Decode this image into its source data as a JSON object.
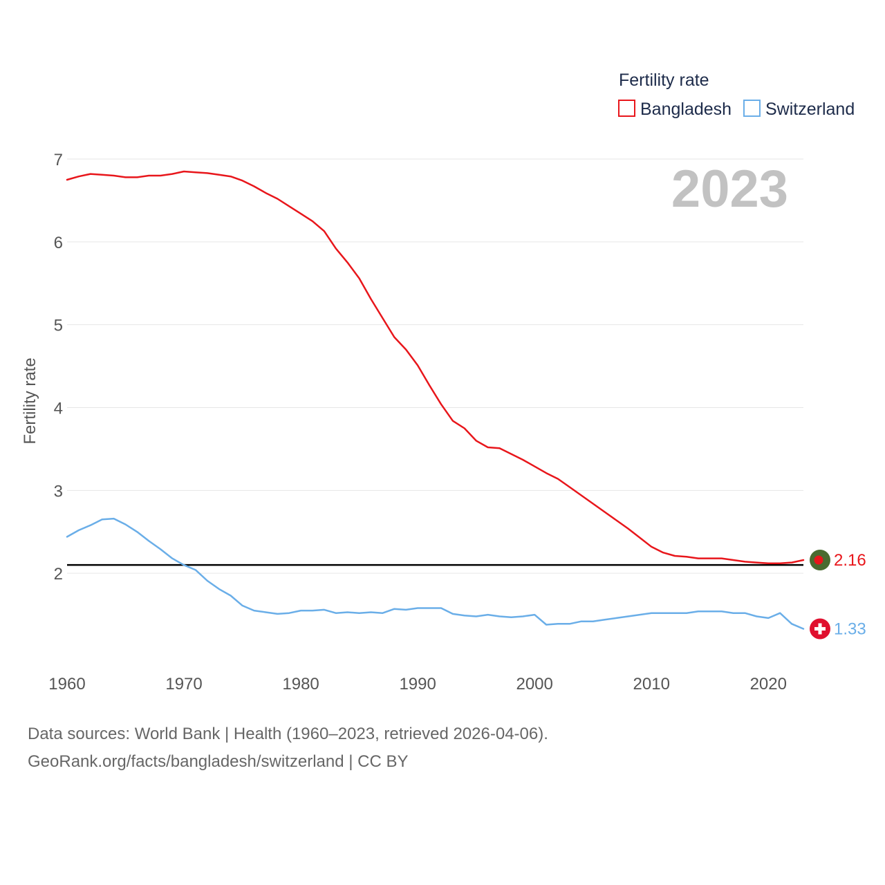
{
  "colors": {
    "bangladesh": "#e8161b",
    "switzerland": "#6aaee8",
    "reference": "#000000",
    "grid": "#e6e6e6",
    "year": "#c2c2c2",
    "bd_flag_green": "#4a6b30",
    "bd_flag_red": "#e8161b",
    "ch_flag_red": "#e0102f"
  },
  "chart_data": {
    "type": "line",
    "title": "",
    "year_label": "2023",
    "xlabel": "",
    "ylabel": "Fertility rate",
    "xlim": [
      1960,
      2023
    ],
    "ylim": [
      1.0,
      7.0
    ],
    "x_ticks": [
      1960,
      1970,
      1980,
      1990,
      2000,
      2010,
      2020
    ],
    "y_ticks": [
      2,
      3,
      4,
      5,
      6,
      7
    ],
    "grid": true,
    "legend": {
      "title": "Fertility rate",
      "position": "top-right"
    },
    "reference_line": {
      "y": 2.1,
      "color": "#000000"
    },
    "x": [
      1960,
      1961,
      1962,
      1963,
      1964,
      1965,
      1966,
      1967,
      1968,
      1969,
      1970,
      1971,
      1972,
      1973,
      1974,
      1975,
      1976,
      1977,
      1978,
      1979,
      1980,
      1981,
      1982,
      1983,
      1984,
      1985,
      1986,
      1987,
      1988,
      1989,
      1990,
      1991,
      1992,
      1993,
      1994,
      1995,
      1996,
      1997,
      1998,
      1999,
      2000,
      2001,
      2002,
      2003,
      2004,
      2005,
      2006,
      2007,
      2008,
      2009,
      2010,
      2011,
      2012,
      2013,
      2014,
      2015,
      2016,
      2017,
      2018,
      2019,
      2020,
      2021,
      2022,
      2023
    ],
    "series": [
      {
        "name": "Bangladesh",
        "end_label": "2.16",
        "values": [
          6.75,
          6.79,
          6.82,
          6.81,
          6.8,
          6.78,
          6.78,
          6.8,
          6.8,
          6.82,
          6.85,
          6.84,
          6.83,
          6.81,
          6.79,
          6.74,
          6.67,
          6.59,
          6.52,
          6.43,
          6.34,
          6.25,
          6.13,
          5.92,
          5.75,
          5.56,
          5.31,
          5.08,
          4.85,
          4.7,
          4.51,
          4.27,
          4.04,
          3.84,
          3.75,
          3.6,
          3.52,
          3.51,
          3.44,
          3.37,
          3.29,
          3.21,
          3.14,
          3.04,
          2.94,
          2.84,
          2.74,
          2.64,
          2.54,
          2.43,
          2.32,
          2.25,
          2.21,
          2.2,
          2.18,
          2.18,
          2.18,
          2.16,
          2.14,
          2.13,
          2.12,
          2.12,
          2.13,
          2.16
        ]
      },
      {
        "name": "Switzerland",
        "end_label": "1.33",
        "values": [
          2.44,
          2.52,
          2.58,
          2.65,
          2.66,
          2.59,
          2.5,
          2.39,
          2.29,
          2.18,
          2.1,
          2.04,
          1.91,
          1.81,
          1.73,
          1.61,
          1.55,
          1.53,
          1.51,
          1.52,
          1.55,
          1.55,
          1.56,
          1.52,
          1.53,
          1.52,
          1.53,
          1.52,
          1.57,
          1.56,
          1.58,
          1.58,
          1.58,
          1.51,
          1.49,
          1.48,
          1.5,
          1.48,
          1.47,
          1.48,
          1.5,
          1.38,
          1.39,
          1.39,
          1.42,
          1.42,
          1.44,
          1.46,
          1.48,
          1.5,
          1.52,
          1.52,
          1.52,
          1.52,
          1.54,
          1.54,
          1.54,
          1.52,
          1.52,
          1.48,
          1.46,
          1.52,
          1.39,
          1.33
        ]
      }
    ]
  },
  "footer": {
    "sources": "Data sources: World Bank | Health (1960–2023, retrieved 2026-04-06).",
    "url": "GeoRank.org/facts/bangladesh/switzerland | CC BY"
  }
}
